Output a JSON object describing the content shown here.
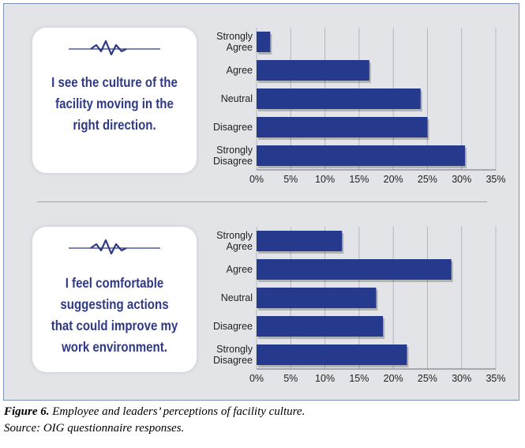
{
  "figure": {
    "caption_label": "Figure 6.",
    "caption_text": " Employee and leaders’ perceptions of facility culture.",
    "source": "Source: OIG questionnaire responses."
  },
  "panels": [
    {
      "statement": "I see the culture of the facility moving in the right direction.",
      "icon": "heartbeat-line-icon"
    },
    {
      "statement": "I feel comfortable suggesting actions that could improve my work environment.",
      "icon": "heartbeat-line-icon"
    }
  ],
  "colors": {
    "bar": "#253a8c",
    "text_accent": "#2e3a86",
    "panel_bg": "#e2e4e8",
    "panel_border": "#7f8fb8"
  },
  "chart_data": [
    {
      "type": "bar",
      "orientation": "horizontal",
      "categories": [
        "Strongly Agree",
        "Agree",
        "Neutral",
        "Disagree",
        "Strongly Disagree"
      ],
      "values": [
        2,
        16.5,
        24,
        25,
        30.5
      ],
      "xticks": [
        "0%",
        "5%",
        "10%",
        "15%",
        "20%",
        "25%",
        "30%",
        "35%"
      ],
      "xlim": [
        0,
        35
      ],
      "grid": true
    },
    {
      "type": "bar",
      "orientation": "horizontal",
      "categories": [
        "Strongly Agree",
        "Agree",
        "Neutral",
        "Disagree",
        "Strongly Disagree"
      ],
      "values": [
        12.5,
        28.5,
        17.5,
        18.5,
        22
      ],
      "xticks": [
        "0%",
        "5%",
        "10%",
        "15%",
        "20%",
        "25%",
        "30%",
        "35%"
      ],
      "xlim": [
        0,
        35
      ],
      "grid": true
    }
  ]
}
